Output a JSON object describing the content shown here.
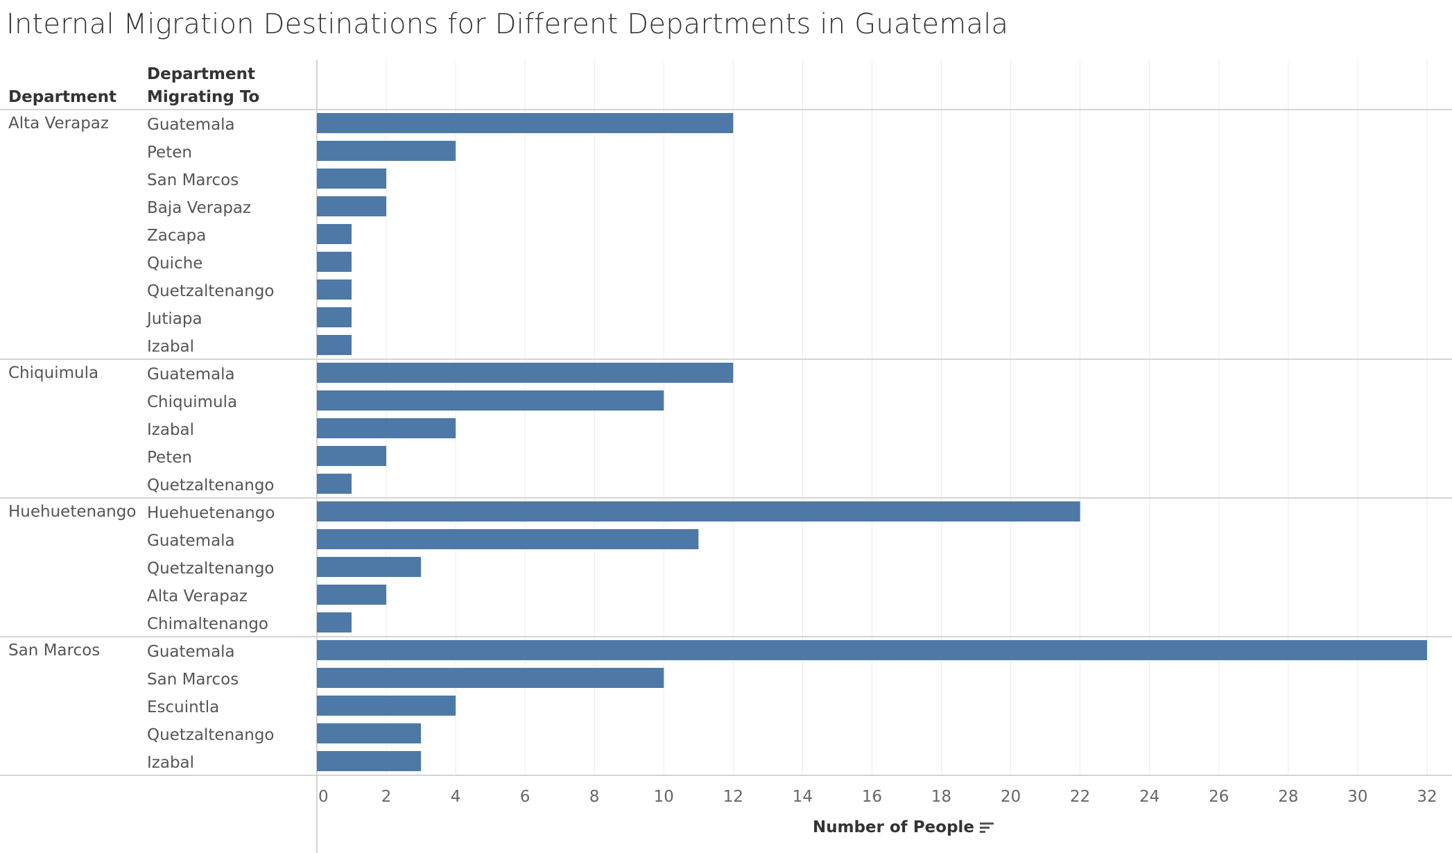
{
  "title": "Internal Migration Destinations for Different Departments in Guatemala",
  "headers": {
    "department": "Department",
    "destination_line1": "Department",
    "destination_line2": "Migrating To"
  },
  "colors": {
    "bar": "#4e79a7",
    "grid": "#ebebeb",
    "rule": "#d4d4d4"
  },
  "chart_data": {
    "type": "bar",
    "orientation": "horizontal",
    "xlabel": "Number of People",
    "xlim": [
      0,
      34
    ],
    "xticks": [
      0,
      2,
      4,
      6,
      8,
      10,
      12,
      14,
      16,
      18,
      20,
      22,
      24,
      26,
      28,
      30,
      32,
      34
    ],
    "grid": true,
    "groups": [
      {
        "department": "Alta Verapaz",
        "rows": [
          {
            "to": "Guatemala",
            "value": 12
          },
          {
            "to": "Peten",
            "value": 4
          },
          {
            "to": "San Marcos",
            "value": 2
          },
          {
            "to": "Baja Verapaz",
            "value": 2
          },
          {
            "to": "Zacapa",
            "value": 1
          },
          {
            "to": "Quiche",
            "value": 1
          },
          {
            "to": "Quetzaltenango",
            "value": 1
          },
          {
            "to": "Jutiapa",
            "value": 1
          },
          {
            "to": "Izabal",
            "value": 1
          }
        ]
      },
      {
        "department": "Chiquimula",
        "rows": [
          {
            "to": "Guatemala",
            "value": 12
          },
          {
            "to": "Chiquimula",
            "value": 10
          },
          {
            "to": "Izabal",
            "value": 4
          },
          {
            "to": "Peten",
            "value": 2
          },
          {
            "to": "Quetzaltenango",
            "value": 1
          }
        ]
      },
      {
        "department": "Huehuetenango",
        "rows": [
          {
            "to": "Huehuetenango",
            "value": 22
          },
          {
            "to": "Guatemala",
            "value": 11
          },
          {
            "to": "Quetzaltenango",
            "value": 3
          },
          {
            "to": "Alta Verapaz",
            "value": 2
          },
          {
            "to": "Chimaltenango",
            "value": 1
          }
        ]
      },
      {
        "department": "San Marcos",
        "rows": [
          {
            "to": "Guatemala",
            "value": 32
          },
          {
            "to": "San Marcos",
            "value": 10
          },
          {
            "to": "Escuintla",
            "value": 4
          },
          {
            "to": "Quetzaltenango",
            "value": 3
          },
          {
            "to": "Izabal",
            "value": 3
          }
        ]
      }
    ]
  }
}
